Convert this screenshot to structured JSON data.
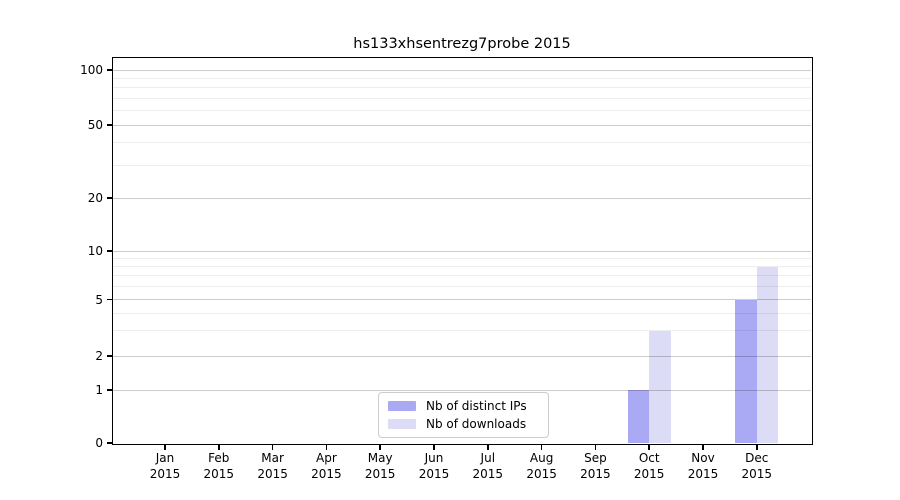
{
  "chart_data": {
    "type": "bar",
    "title": "hs133xhsentrezg7probe 2015",
    "categories": [
      {
        "month": "Jan",
        "year": "2015"
      },
      {
        "month": "Feb",
        "year": "2015"
      },
      {
        "month": "Mar",
        "year": "2015"
      },
      {
        "month": "Apr",
        "year": "2015"
      },
      {
        "month": "May",
        "year": "2015"
      },
      {
        "month": "Jun",
        "year": "2015"
      },
      {
        "month": "Jul",
        "year": "2015"
      },
      {
        "month": "Aug",
        "year": "2015"
      },
      {
        "month": "Sep",
        "year": "2015"
      },
      {
        "month": "Oct",
        "year": "2015"
      },
      {
        "month": "Nov",
        "year": "2015"
      },
      {
        "month": "Dec",
        "year": "2015"
      }
    ],
    "series": [
      {
        "name": "Nb of distinct IPs",
        "color": "#a9a9f4",
        "values": [
          0,
          0,
          0,
          0,
          0,
          0,
          0,
          0,
          0,
          1,
          0,
          5
        ]
      },
      {
        "name": "Nb of downloads",
        "color": "#dcdcf7",
        "values": [
          0,
          0,
          0,
          0,
          0,
          0,
          0,
          0,
          0,
          3,
          0,
          8
        ]
      }
    ],
    "y_axis": {
      "scale": "log-like",
      "ylim": [
        0,
        100
      ],
      "ticks": [
        {
          "value": 100,
          "label": "100"
        },
        {
          "value": 50,
          "label": "50"
        },
        {
          "value": 20,
          "label": "20"
        },
        {
          "value": 10,
          "label": "10"
        },
        {
          "value": 5,
          "label": "5"
        },
        {
          "value": 2,
          "label": "2"
        },
        {
          "value": 1,
          "label": "1"
        },
        {
          "value": 0,
          "label": "0"
        }
      ],
      "minor_gridlines": [
        3,
        4,
        6,
        7,
        8,
        9,
        30,
        40,
        60,
        70,
        80,
        90
      ]
    },
    "legend": {
      "position": "inside-bottom-center"
    },
    "colors": {
      "grid_major": "rgba(0,0,0,0.20)",
      "grid_minor": "rgba(0,0,0,0.07)",
      "axis": "#000000",
      "background": "#ffffff"
    }
  }
}
